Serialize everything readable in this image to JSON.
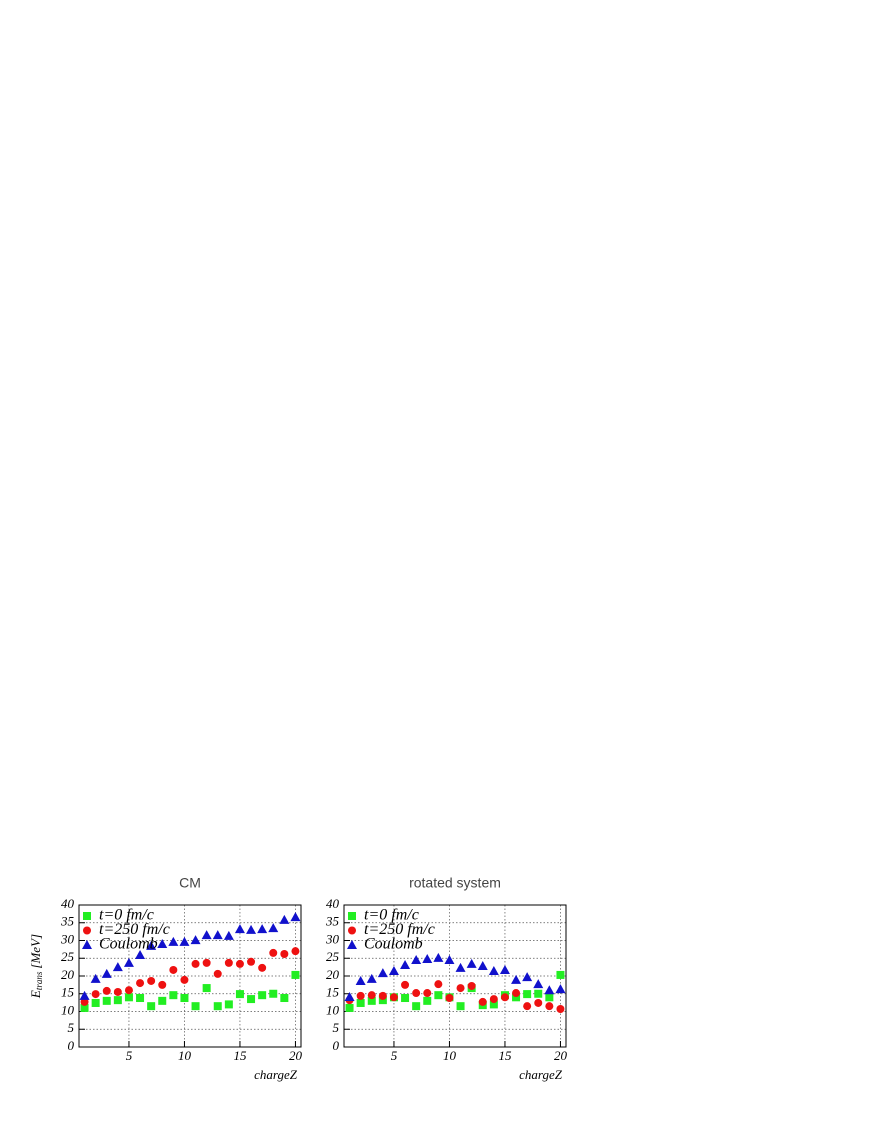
{
  "chart_data": [
    {
      "type": "scatter",
      "title": "CM",
      "xlabel": "chargeZ",
      "ylabel": "E",
      "ylabel_sub": "trans",
      "ylabel_unit": "[MeV]",
      "x": [
        1,
        2,
        3,
        4,
        5,
        6,
        7,
        8,
        9,
        10,
        11,
        12,
        13,
        14,
        15,
        16,
        17,
        18,
        19,
        20
      ],
      "xlim": [
        0.5,
        20.5
      ],
      "ylim": [
        0,
        40
      ],
      "xticks": [
        5,
        10,
        15,
        20
      ],
      "yticks": [
        0,
        5,
        10,
        15,
        20,
        25,
        30,
        35,
        40
      ],
      "grid": true,
      "legend": "upper left",
      "series": [
        {
          "name": "t=0 fm/c",
          "color": "#22ee22",
          "marker": "square",
          "values": [
            11,
            12.4,
            13,
            13.2,
            14,
            13.8,
            11.5,
            13,
            14.6,
            13.8,
            11.5,
            16.6,
            11.5,
            12,
            14.9,
            13.5,
            14.6,
            15,
            13.8,
            20.3
          ]
        },
        {
          "name": "t=250 fm/c",
          "color": "#ee1111",
          "marker": "circle",
          "values": [
            12.7,
            14.9,
            15.8,
            15.5,
            16,
            18,
            18.6,
            17.5,
            21.7,
            18.9,
            23.4,
            23.7,
            20.6,
            23.7,
            23.4,
            24,
            22.3,
            26.5,
            26.2,
            27
          ]
        },
        {
          "name": "Coulomb",
          "color": "#1111cc",
          "marker": "triangle",
          "values": [
            14.4,
            19.2,
            20.6,
            22.5,
            23.7,
            25.9,
            28.5,
            29,
            29.6,
            29.6,
            30.1,
            31.5,
            31.5,
            31.3,
            33.2,
            33,
            33.2,
            33.5,
            35.8,
            36.6
          ]
        }
      ]
    },
    {
      "type": "scatter",
      "title": "rotated system",
      "xlabel": "chargeZ",
      "x": [
        1,
        2,
        3,
        4,
        5,
        6,
        7,
        8,
        9,
        10,
        11,
        12,
        13,
        14,
        15,
        16,
        17,
        18,
        19,
        20
      ],
      "xlim": [
        0.5,
        20.5
      ],
      "ylim": [
        0,
        40
      ],
      "xticks": [
        5,
        10,
        15,
        20
      ],
      "yticks": [
        0,
        5,
        10,
        15,
        20,
        25,
        30,
        35,
        40
      ],
      "grid": true,
      "legend": "upper left",
      "series": [
        {
          "name": "t=0 fm/c",
          "color": "#22ee22",
          "marker": "square",
          "values": [
            11,
            12.4,
            13,
            13.2,
            14,
            13.8,
            11.5,
            13,
            14.6,
            14,
            11.5,
            16.6,
            11.8,
            12,
            14.6,
            14,
            14.9,
            15,
            14,
            20.3
          ]
        },
        {
          "name": "t=250 fm/c",
          "color": "#ee1111",
          "marker": "circle",
          "values": [
            13.2,
            14.4,
            14.6,
            14.4,
            14,
            17.5,
            15.2,
            15.2,
            17.7,
            13.8,
            16.6,
            17.2,
            12.7,
            13.5,
            14,
            15.2,
            11.5,
            12.4,
            11.5,
            10.7
          ]
        },
        {
          "name": "Coulomb",
          "color": "#1111cc",
          "marker": "triangle",
          "values": [
            14.1,
            18.6,
            19.2,
            20.8,
            21.4,
            23.1,
            24.5,
            24.8,
            25.1,
            24.5,
            22.3,
            23.4,
            22.8,
            21.4,
            21.7,
            18.9,
            19.7,
            17.7,
            16,
            16.3
          ]
        }
      ]
    }
  ]
}
